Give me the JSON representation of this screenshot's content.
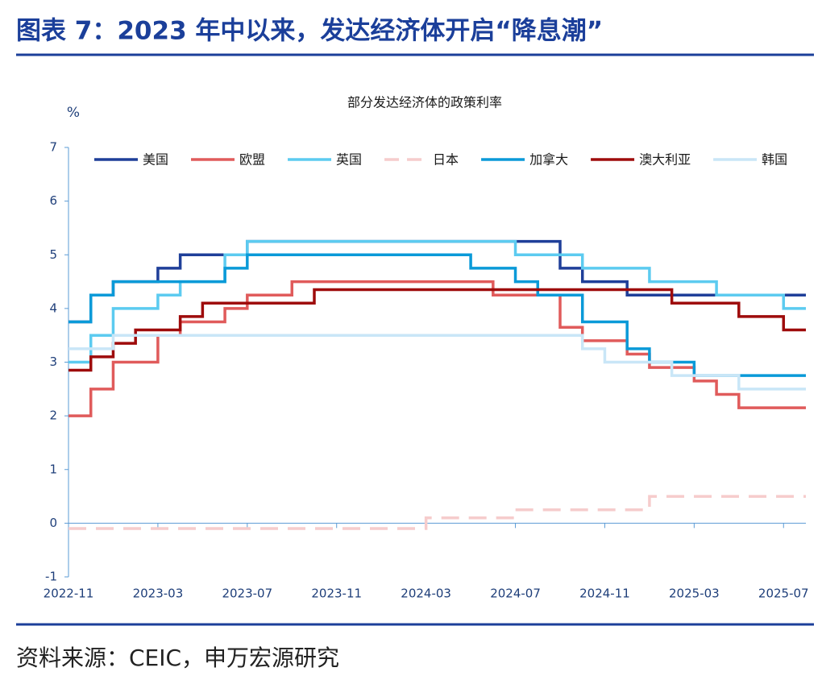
{
  "header": {
    "title": "图表 7：2023 年中以来，发达经济体开启“降息潮”"
  },
  "chart_data": {
    "type": "line",
    "title": "部分发达经济体的政策利率",
    "y_label": "%",
    "step": true,
    "x": [
      "2022-11",
      "2022-12",
      "2023-01",
      "2023-02",
      "2023-03",
      "2023-04",
      "2023-05",
      "2023-06",
      "2023-07",
      "2023-08",
      "2023-09",
      "2023-10",
      "2023-11",
      "2023-12",
      "2024-01",
      "2024-02",
      "2024-03",
      "2024-04",
      "2024-05",
      "2024-06",
      "2024-07",
      "2024-08",
      "2024-09",
      "2024-10",
      "2024-11",
      "2024-12",
      "2025-01",
      "2025-02",
      "2025-03",
      "2025-04",
      "2025-05",
      "2025-06",
      "2025-07",
      "2025-08"
    ],
    "xlim": [
      "2022-11",
      "2025-08"
    ],
    "xticks": [
      "2022-11",
      "2023-03",
      "2023-07",
      "2023-11",
      "2024-03",
      "2024-07",
      "2024-11",
      "2025-03",
      "2025-07"
    ],
    "ylim": [
      -1,
      7
    ],
    "yticks": [
      -1,
      0,
      1,
      2,
      3,
      4,
      5,
      6,
      7
    ],
    "series": [
      {
        "name": "美国",
        "color": "#1f3f99",
        "dash": false,
        "values": [
          3.75,
          4.25,
          4.5,
          4.5,
          4.75,
          5,
          5,
          5,
          5.25,
          5.25,
          5.25,
          5.25,
          5.25,
          5.25,
          5.25,
          5.25,
          5.25,
          5.25,
          5.25,
          5.25,
          5.25,
          5.25,
          4.75,
          4.5,
          4.5,
          4.25,
          4.25,
          4.25,
          4.25,
          4.25,
          4.25,
          4.25,
          4.25,
          4.25
        ]
      },
      {
        "name": "欧盟",
        "color": "#e05b5b",
        "dash": false,
        "values": [
          2,
          2.5,
          3,
          3,
          3.5,
          3.75,
          3.75,
          4,
          4.25,
          4.25,
          4.5,
          4.5,
          4.5,
          4.5,
          4.5,
          4.5,
          4.5,
          4.5,
          4.5,
          4.25,
          4.25,
          4.25,
          3.65,
          3.4,
          3.4,
          3.15,
          2.9,
          2.9,
          2.65,
          2.4,
          2.15,
          2.15,
          2.15,
          2.15
        ]
      },
      {
        "name": "英国",
        "color": "#5ccbf0",
        "dash": false,
        "values": [
          3,
          3.5,
          4,
          4,
          4.25,
          4.5,
          4.5,
          5,
          5.25,
          5.25,
          5.25,
          5.25,
          5.25,
          5.25,
          5.25,
          5.25,
          5.25,
          5.25,
          5.25,
          5.25,
          5,
          5,
          5,
          4.75,
          4.75,
          4.75,
          4.5,
          4.5,
          4.5,
          4.25,
          4.25,
          4.25,
          4,
          4
        ]
      },
      {
        "name": "日本",
        "color": "#f6cccc",
        "dash": true,
        "values": [
          -0.1,
          -0.1,
          -0.1,
          -0.1,
          -0.1,
          -0.1,
          -0.1,
          -0.1,
          -0.1,
          -0.1,
          -0.1,
          -0.1,
          -0.1,
          -0.1,
          -0.1,
          -0.1,
          0.1,
          0.1,
          0.1,
          0.1,
          0.25,
          0.25,
          0.25,
          0.25,
          0.25,
          0.25,
          0.5,
          0.5,
          0.5,
          0.5,
          0.5,
          0.5,
          0.5,
          0.5
        ]
      },
      {
        "name": "加拿大",
        "color": "#0a9ad8",
        "dash": false,
        "values": [
          3.75,
          4.25,
          4.5,
          4.5,
          4.5,
          4.5,
          4.5,
          4.75,
          5,
          5,
          5,
          5,
          5,
          5,
          5,
          5,
          5,
          5,
          4.75,
          4.75,
          4.5,
          4.25,
          4.25,
          3.75,
          3.75,
          3.25,
          3,
          3,
          2.75,
          2.75,
          2.75,
          2.75,
          2.75,
          2.75
        ]
      },
      {
        "name": "澳大利亚",
        "color": "#9e0b0b",
        "dash": false,
        "values": [
          2.85,
          3.1,
          3.35,
          3.6,
          3.6,
          3.85,
          4.1,
          4.1,
          4.1,
          4.1,
          4.1,
          4.35,
          4.35,
          4.35,
          4.35,
          4.35,
          4.35,
          4.35,
          4.35,
          4.35,
          4.35,
          4.35,
          4.35,
          4.35,
          4.35,
          4.35,
          4.35,
          4.1,
          4.1,
          4.1,
          3.85,
          3.85,
          3.6,
          3.6
        ]
      },
      {
        "name": "韩国",
        "color": "#c9e6f7",
        "dash": false,
        "values": [
          3.25,
          3.25,
          3.5,
          3.5,
          3.5,
          3.5,
          3.5,
          3.5,
          3.5,
          3.5,
          3.5,
          3.5,
          3.5,
          3.5,
          3.5,
          3.5,
          3.5,
          3.5,
          3.5,
          3.5,
          3.5,
          3.5,
          3.5,
          3.25,
          3,
          3,
          3,
          2.75,
          2.75,
          2.75,
          2.5,
          2.5,
          2.5,
          2.5
        ]
      }
    ]
  },
  "footer": {
    "source": "资料来源：CEIC，申万宏源研究"
  }
}
